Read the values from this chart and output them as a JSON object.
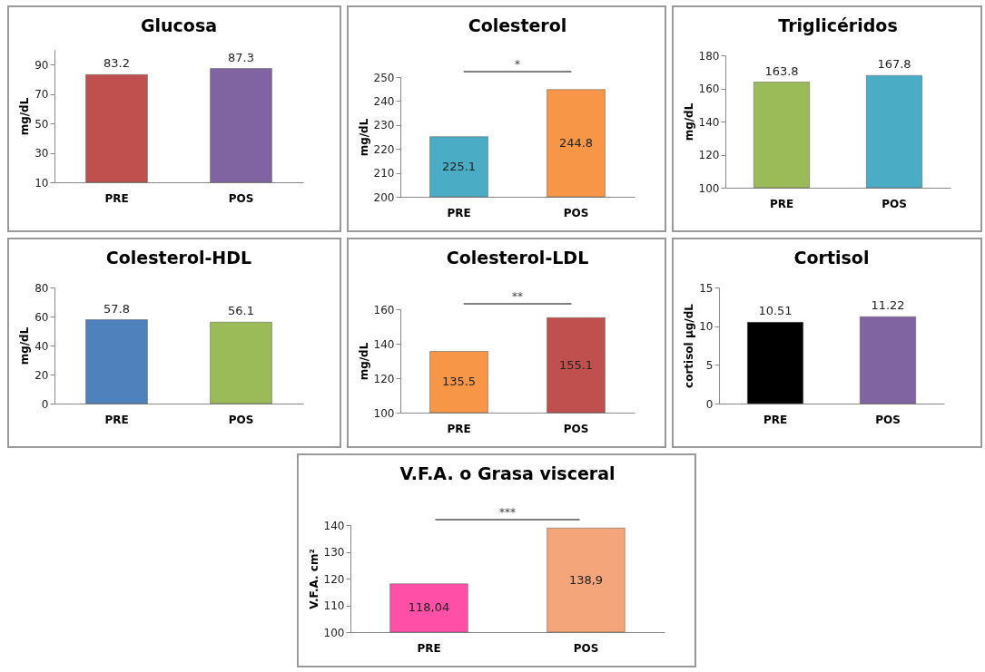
{
  "chart_data": [
    {
      "type": "bar",
      "title": "Glucosa",
      "ylabel": "mg/dL",
      "categories": [
        "PRE",
        "POS"
      ],
      "values": [
        83.2,
        87.3
      ],
      "colors": [
        "#c0504d",
        "#8064a2"
      ],
      "ylim": [
        10,
        100
      ],
      "yticks": [
        10,
        30,
        50,
        70,
        90
      ],
      "data_labels": true,
      "grid": false,
      "legend": false
    },
    {
      "type": "bar",
      "title": "Colesterol",
      "ylabel": "mg/dL",
      "categories": [
        "PRE",
        "POS"
      ],
      "values": [
        225.1,
        244.8
      ],
      "colors": [
        "#4bacc6",
        "#f79646"
      ],
      "ylim": [
        200,
        250
      ],
      "yticks": [
        200,
        210,
        220,
        230,
        240,
        250
      ],
      "data_labels": true,
      "grid": false,
      "legend": false,
      "annotations": [
        "*"
      ]
    },
    {
      "type": "bar",
      "title": "Triglicéridos",
      "ylabel": "mg/dL",
      "categories": [
        "PRE",
        "POS"
      ],
      "values": [
        163.8,
        167.8
      ],
      "colors": [
        "#9bbb59",
        "#4bacc6"
      ],
      "ylim": [
        100,
        180
      ],
      "yticks": [
        100,
        120,
        140,
        160,
        180
      ],
      "data_labels": true,
      "grid": false,
      "legend": false
    },
    {
      "type": "bar",
      "title": "Colesterol-HDL",
      "ylabel": "mg/dL",
      "categories": [
        "PRE",
        "POS"
      ],
      "values": [
        57.8,
        56.1
      ],
      "colors": [
        "#4f81bd",
        "#9bbb59"
      ],
      "ylim": [
        0,
        80
      ],
      "yticks": [
        0,
        20,
        40,
        60,
        80
      ],
      "data_labels": true,
      "grid": false,
      "legend": false
    },
    {
      "type": "bar",
      "title": "Colesterol-LDL",
      "ylabel": "mg/dL",
      "categories": [
        "PRE",
        "POS"
      ],
      "values": [
        135.5,
        155.1
      ],
      "colors": [
        "#f79646",
        "#c0504d"
      ],
      "ylim": [
        100,
        160
      ],
      "yticks": [
        100,
        120,
        140,
        160
      ],
      "data_labels": true,
      "grid": false,
      "legend": false,
      "annotations": [
        "**"
      ]
    },
    {
      "type": "bar",
      "title": "Cortisol",
      "ylabel": "cortisol µg/dL",
      "categories": [
        "PRE",
        "POS"
      ],
      "values": [
        10.51,
        11.22
      ],
      "colors": [
        "#000000",
        "#8064a2"
      ],
      "ylim": [
        0,
        15
      ],
      "yticks": [
        0,
        5,
        10,
        15
      ],
      "data_labels": true,
      "grid": false,
      "legend": false
    },
    {
      "type": "bar",
      "title": "V.F.A. o Grasa visceral",
      "ylabel": "V.F.A. cm²",
      "categories": [
        "PRE",
        "POS"
      ],
      "values": [
        118.04,
        138.9
      ],
      "value_labels": [
        "118,04",
        "138,9"
      ],
      "colors": [
        "#ff4fa7",
        "#f4a57a"
      ],
      "ylim": [
        100,
        140
      ],
      "yticks": [
        100,
        110,
        120,
        130,
        140
      ],
      "grid": false,
      "legend": false,
      "annotations": [
        "***"
      ]
    }
  ]
}
